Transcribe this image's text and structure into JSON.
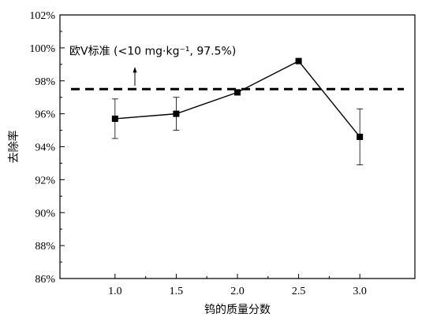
{
  "chart_data": {
    "type": "line",
    "title": "",
    "xlabel": "钨的质量分数",
    "ylabel": "去除率",
    "x": [
      1.0,
      1.5,
      2.0,
      2.5,
      3.0
    ],
    "x_tick_labels": [
      "1.0",
      "1.5",
      "2.0",
      "2.5",
      "3.0"
    ],
    "xlim": [
      0.55,
      3.45
    ],
    "ylim": [
      86,
      102
    ],
    "y_ticks": [
      86,
      88,
      90,
      92,
      94,
      96,
      98,
      100,
      102
    ],
    "y_tick_labels": [
      "86%",
      "88%",
      "90%",
      "92%",
      "94%",
      "96%",
      "98%",
      "100%",
      "102%"
    ],
    "series": [
      {
        "values": [
          95.7,
          96.0,
          97.3,
          99.2,
          94.6
        ],
        "error_upper": [
          96.9,
          97.0,
          97.4,
          99.2,
          96.3
        ],
        "error_lower": [
          94.5,
          95.0,
          97.2,
          99.2,
          92.9
        ]
      }
    ],
    "reference_line": {
      "y": 97.5,
      "style": "dashed",
      "label": "欧Ⅴ标准 (<10 mg·kg⁻¹, 97.5%)"
    },
    "grid": false,
    "legend": "none"
  }
}
